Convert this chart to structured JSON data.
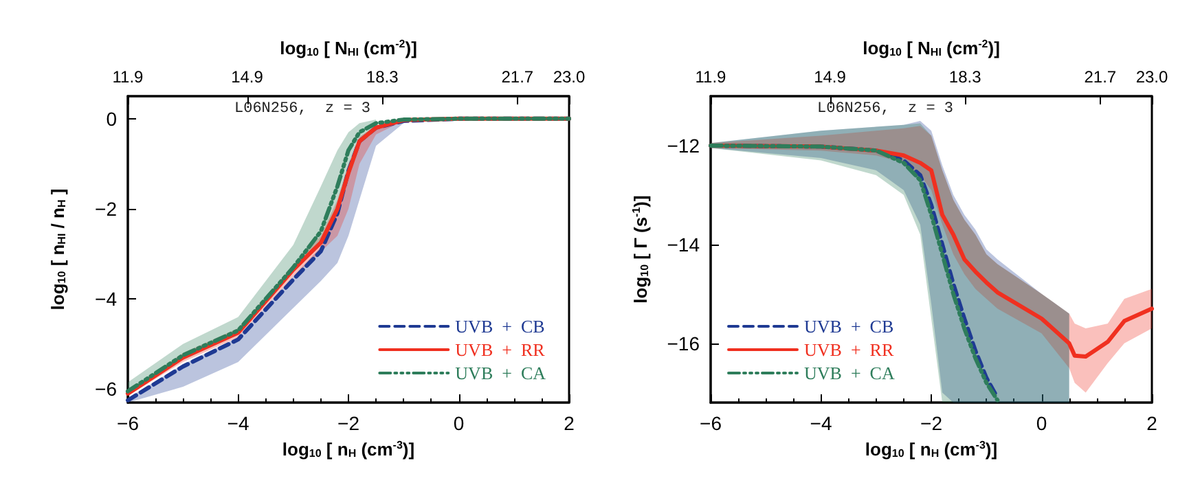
{
  "chart_data": [
    {
      "type": "line",
      "annotations": [
        "L06N256,  z = 3"
      ],
      "xlabel": "log$_{10}$ [ n$_{H}$ (cm$^{-3}$)]",
      "ylabel": "log$_{10}$ [ n$_{HI}$ / n$_{H}$ ]",
      "x2label": "log$_{10}$ [ N$_{HI}$ (cm$^{-2}$)]",
      "xlim": [
        -6,
        2
      ],
      "xticks": [
        -6,
        -4,
        -2,
        0,
        2
      ],
      "ylim": [
        -6.3,
        0.5
      ],
      "yticks": [
        -6,
        -4,
        -2,
        0
      ],
      "legend": "bottom right",
      "marker": "none",
      "x2lim": [
        11.9,
        23.0
      ],
      "x2ticks": [
        11.9,
        14.9,
        18.3,
        21.7,
        {
          "value": 23.0,
          "label": "23.0"
        }
      ],
      "x": [
        -6,
        -5,
        -4,
        -3,
        -2.5,
        -2.2,
        -2,
        -1.8,
        -1.5,
        -1,
        0,
        1,
        2
      ],
      "series": [
        {
          "name": "UVB  +  CB",
          "color": "#1f3a93",
          "line_style": "dashed",
          "values": [
            -6.25,
            -5.5,
            -4.9,
            -3.57,
            -2.94,
            -2.1,
            -1.16,
            -0.5,
            -0.2,
            -0.05,
            0,
            0,
            0
          ],
          "lower": [
            -6.3,
            -5.95,
            -5.4,
            -4.2,
            -3.6,
            -3.2,
            -2.6,
            -1.8,
            -0.6,
            -0.1,
            null,
            null,
            null
          ],
          "upper": [
            -6.2,
            -5.45,
            -4.85,
            -3.5,
            -2.85,
            -2.0,
            -1.05,
            -0.45,
            -0.15,
            -0.03,
            null,
            null,
            null
          ]
        },
        {
          "name": "UVB  +  RR",
          "color": "#f03020",
          "line_style": "solid",
          "values": [
            -6.1,
            -5.3,
            -4.75,
            -3.35,
            -2.75,
            -2.0,
            -1.2,
            -0.5,
            -0.2,
            -0.03,
            0,
            0,
            0
          ],
          "lower": [
            -6.15,
            -5.4,
            -4.85,
            -3.5,
            -2.95,
            -2.6,
            -2.0,
            -1.0,
            -0.35,
            -0.05,
            null,
            null,
            null
          ],
          "upper": [
            -6.05,
            -5.2,
            -4.65,
            -3.25,
            -2.6,
            -1.8,
            -1.0,
            -0.4,
            -0.15,
            -0.02,
            null,
            null,
            null
          ]
        },
        {
          "name": "UVB  +  CA",
          "color": "#2e7d5b",
          "line_style": "dotted",
          "values": [
            -6.05,
            -5.25,
            -4.7,
            -3.3,
            -2.5,
            -1.5,
            -0.7,
            -0.3,
            -0.1,
            -0.02,
            0,
            0,
            0
          ],
          "lower": [
            -6.15,
            -5.35,
            -4.8,
            -3.4,
            -2.75,
            -2.1,
            -1.3,
            -0.5,
            -0.15,
            null,
            null,
            null,
            null
          ],
          "upper": [
            -5.85,
            -5.0,
            -4.4,
            -2.8,
            -1.5,
            -0.7,
            -0.3,
            -0.1,
            -0.02,
            null,
            null,
            null,
            null
          ]
        }
      ]
    },
    {
      "type": "line",
      "annotations": [
        "L06N256,  z = 3"
      ],
      "xlabel": "log$_{10}$ [ n$_{H}$ (cm$^{-3}$)]",
      "ylabel": "log$_{10}$ [ Γ (s$^{-1}$)]",
      "x2label": "log$_{10}$ [ N$_{HI}$ (cm$^{-2}$)]",
      "xlim": [
        -6,
        2
      ],
      "xticks": [
        -6,
        -4,
        -2,
        0,
        2
      ],
      "ylim": [
        -17.2,
        -11
      ],
      "yticks": [
        -16,
        -14,
        -12
      ],
      "legend": "bottom left",
      "marker": "none",
      "x2lim": [
        11.9,
        23.0
      ],
      "x2ticks": [
        11.9,
        14.9,
        18.3,
        21.7,
        {
          "value": 23.0,
          "label": "23.0"
        }
      ],
      "x": [
        -6,
        -4,
        -3,
        -2.5,
        -2.2,
        -2,
        -1.8,
        -1.6,
        -1.4,
        -1.2,
        -1,
        -0.8,
        0,
        0.5,
        0.6,
        0.8,
        1.2,
        1.5,
        2
      ],
      "series": [
        {
          "name": "UVB  +  CB",
          "color": "#1f3a93",
          "line_style": "dashed",
          "values": [
            -12,
            -12.02,
            -12.1,
            -12.3,
            -12.6,
            -13.2,
            -14.0,
            -14.8,
            -15.5,
            -16.15,
            -16.7,
            -17.1,
            null,
            null,
            null,
            null,
            null,
            null,
            null
          ],
          "lower": [
            -12.05,
            -12.25,
            -12.5,
            -12.9,
            -13.6,
            -15.2,
            -17.0,
            -17.2,
            -17.2,
            -17.2,
            -17.2,
            -17.2,
            -17.2,
            -17.2,
            null,
            null,
            null,
            null,
            null
          ],
          "upper": [
            -11.95,
            -11.7,
            -11.62,
            -11.58,
            -11.5,
            -11.7,
            -12.4,
            -13.0,
            -13.4,
            -13.7,
            -14.1,
            -14.3,
            -15.0,
            -15.4,
            null,
            null,
            null,
            null,
            null
          ]
        },
        {
          "name": "UVB  +  RR",
          "color": "#f03020",
          "line_style": "solid",
          "values": [
            -12,
            -12.02,
            -12.1,
            -12.2,
            -12.35,
            -12.5,
            -13.4,
            -13.8,
            -14.3,
            -14.55,
            -14.77,
            -14.97,
            -15.5,
            -16.0,
            -16.25,
            -16.27,
            -15.97,
            -15.55,
            -15.3
          ],
          "lower": [
            -12.05,
            -12.1,
            -12.2,
            -12.35,
            -12.6,
            -12.9,
            -13.6,
            -14.2,
            -14.6,
            -14.9,
            -15.1,
            -15.3,
            -15.8,
            -16.5,
            -16.8,
            -17.0,
            -16.4,
            -16.0,
            -15.7
          ],
          "upper": [
            -11.95,
            -11.8,
            -11.7,
            -11.65,
            -11.6,
            -11.8,
            -12.5,
            -13.1,
            -13.5,
            -13.8,
            -14.2,
            -14.4,
            -15.0,
            -15.4,
            -15.6,
            -15.7,
            -15.6,
            -15.1,
            -14.9
          ]
        },
        {
          "name": "UVB  +  CA",
          "color": "#2e7d5b",
          "line_style": "dotted",
          "values": [
            -12,
            -12.02,
            -12.1,
            -12.35,
            -12.7,
            -13.4,
            -14.2,
            -15.0,
            -15.7,
            -16.3,
            -16.8,
            -17.15,
            null,
            null,
            null,
            null,
            null,
            null,
            null
          ],
          "lower": [
            -12.05,
            -12.3,
            -12.6,
            -13.0,
            -13.8,
            -15.5,
            -17.2,
            -17.2,
            -17.2,
            -17.2,
            -17.2,
            -17.2,
            -17.2,
            -17.2,
            null,
            null,
            null,
            null,
            null
          ],
          "upper": [
            -11.95,
            -11.7,
            -11.62,
            -11.58,
            -11.55,
            -11.8,
            -12.5,
            -13.1,
            -13.5,
            -13.8,
            -14.2,
            -14.4,
            -15.0,
            -15.4,
            null,
            null,
            null,
            null,
            null
          ]
        }
      ]
    }
  ]
}
